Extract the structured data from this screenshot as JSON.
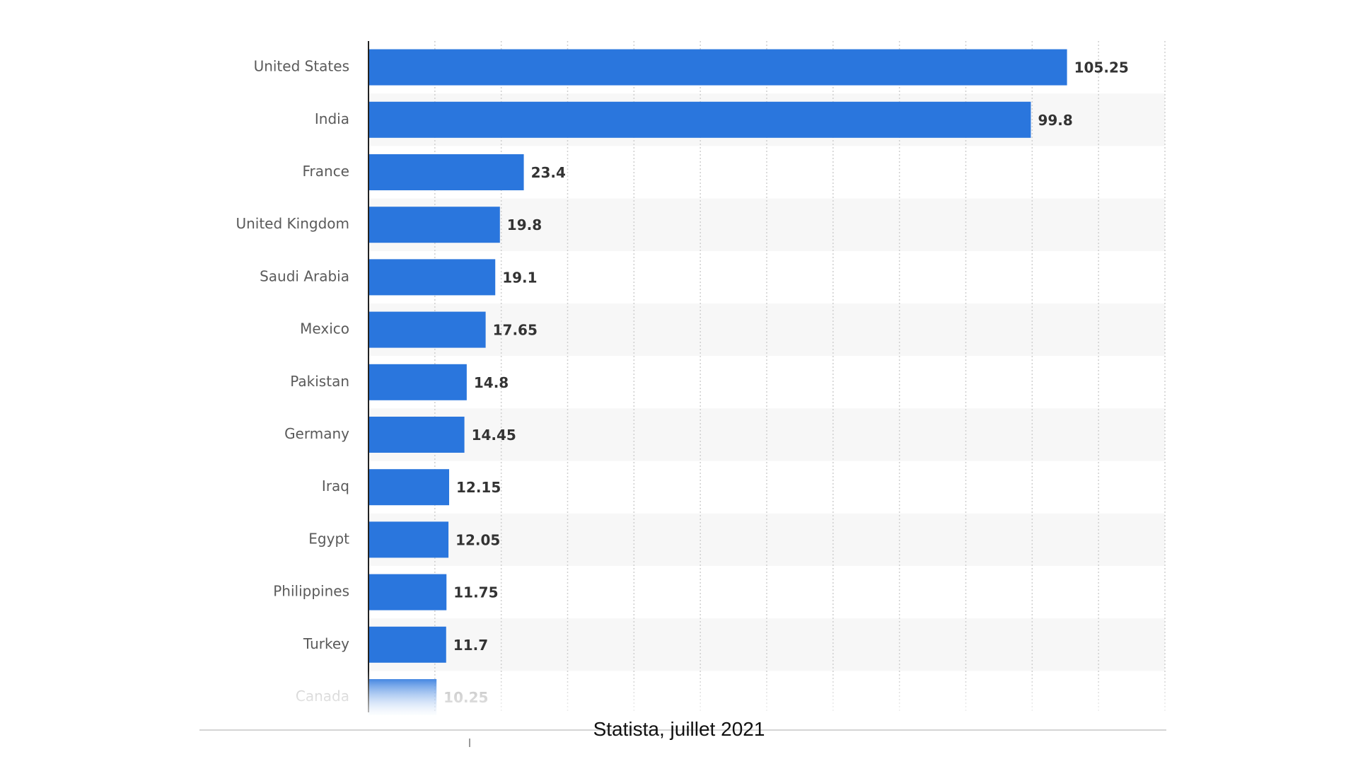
{
  "chart_data": {
    "type": "bar",
    "orientation": "horizontal",
    "categories": [
      "United States",
      "India",
      "France",
      "United Kingdom",
      "Saudi Arabia",
      "Mexico",
      "Pakistan",
      "Germany",
      "Iraq",
      "Egypt",
      "Philippines",
      "Turkey",
      "Canada"
    ],
    "values": [
      105.25,
      99.8,
      23.4,
      19.8,
      19.1,
      17.65,
      14.8,
      14.45,
      12.15,
      12.05,
      11.75,
      11.7,
      10.25
    ],
    "value_labels": [
      "105.25",
      "99.8",
      "23.4",
      "19.8",
      "19.1",
      "17.65",
      "14.8",
      "14.45",
      "12.15",
      "12.05",
      "11.75",
      "11.7",
      "10.25"
    ],
    "xlim": [
      0,
      120
    ],
    "x_grid_step": 10,
    "grid": true,
    "title": "",
    "xlabel": "",
    "ylabel": "",
    "bar_color": "#2a76dd",
    "faded_last_bar": true
  },
  "footer": {
    "source": "Statista, juillet 2021"
  }
}
